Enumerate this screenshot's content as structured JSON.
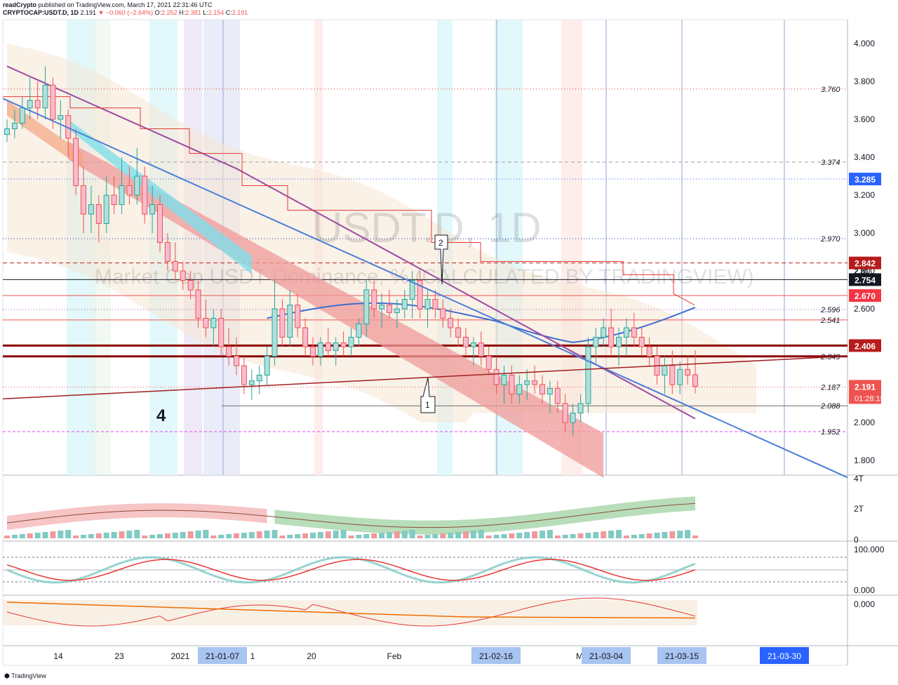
{
  "header": {
    "publisher_line": "readCrypto published on TradingView.com, March 17, 2021 22:31:46 UTC",
    "publisher": "readCrypto",
    "published_text": "published on TradingView.com, March 17, 2021 22:31:46 UTC",
    "symbol": "CRYPTOCAP:USDT.D, 1D",
    "last": "2.191",
    "change": "−0.060 (−2.64%)",
    "o_label": "O:",
    "o": "2.252",
    "h_label": "H:",
    "h": "2.381",
    "l_label": "L:",
    "l": "2.154",
    "c_label": "C:",
    "c": "2.191"
  },
  "watermark": {
    "symbol": "USDT.D, 1D",
    "description": "Market Cap USDT Dominance, % (CALCULATED BY TRADINGVIEW)"
  },
  "chart_data": {
    "type": "candlestick",
    "symbol": "USDT.D",
    "interval": "1D",
    "y_axis_ticks": [
      "4.000",
      "3.800",
      "3.600",
      "3.400",
      "3.200",
      "3.000",
      "2.800",
      "2.600",
      "2.400",
      "2.200",
      "2.000",
      "1.800"
    ],
    "ylim": [
      1.72,
      4.15
    ],
    "x_axis_labels": [
      "14",
      "23",
      "2021",
      "21-01-07",
      "1",
      "20",
      "Feb",
      "21-02-16",
      "M",
      "21-03-04",
      "21-03-15",
      "21-03-30"
    ],
    "highlighted_dates": [
      "21-01-07",
      "21-02-16",
      "21-03-04",
      "21-03-15",
      "21-03-30"
    ],
    "level_labels": [
      "3.760",
      "3.374",
      "2.970",
      "2.596",
      "2.541",
      "2.349",
      "2.187",
      "2.088",
      "1.952"
    ],
    "price_tags": [
      {
        "value": "3.285",
        "color": "#2962ff"
      },
      {
        "value": "2.842",
        "color": "#b71c1c"
      },
      {
        "value": "2.754",
        "color": "#131722"
      },
      {
        "value": "2.670",
        "color": "#f23645"
      },
      {
        "value": "2.406",
        "color": "#b71c1c"
      },
      {
        "value": "2.191",
        "sub": "01:28:15",
        "color": "#ef5350"
      }
    ],
    "hidden_tag_text": "2.80",
    "annotations": [
      "1",
      "2",
      "4"
    ],
    "candles": [
      [
        3.52,
        3.6,
        3.48,
        3.55
      ],
      [
        3.55,
        3.65,
        3.5,
        3.58
      ],
      [
        3.58,
        3.72,
        3.55,
        3.66
      ],
      [
        3.66,
        3.82,
        3.6,
        3.7
      ],
      [
        3.7,
        3.8,
        3.6,
        3.66
      ],
      [
        3.66,
        3.88,
        3.6,
        3.78
      ],
      [
        3.78,
        3.82,
        3.55,
        3.6
      ],
      [
        3.6,
        3.7,
        3.5,
        3.62
      ],
      [
        3.62,
        3.65,
        3.4,
        3.5
      ],
      [
        3.5,
        3.55,
        3.2,
        3.25
      ],
      [
        3.25,
        3.35,
        3.0,
        3.1
      ],
      [
        3.1,
        3.25,
        3.0,
        3.15
      ],
      [
        3.15,
        3.2,
        2.95,
        3.05
      ],
      [
        3.05,
        3.3,
        3.0,
        3.2
      ],
      [
        3.2,
        3.3,
        3.1,
        3.15
      ],
      [
        3.15,
        3.4,
        3.1,
        3.25
      ],
      [
        3.25,
        3.35,
        3.15,
        3.2
      ],
      [
        3.2,
        3.45,
        3.15,
        3.3
      ],
      [
        3.3,
        3.35,
        3.05,
        3.1
      ],
      [
        3.1,
        3.25,
        3.0,
        3.15
      ],
      [
        3.15,
        3.2,
        2.9,
        2.95
      ],
      [
        2.95,
        3.0,
        2.8,
        2.85
      ],
      [
        2.85,
        2.95,
        2.75,
        2.8
      ],
      [
        2.8,
        2.85,
        2.7,
        2.75
      ],
      [
        2.75,
        2.8,
        2.65,
        2.7
      ],
      [
        2.7,
        2.75,
        2.5,
        2.55
      ],
      [
        2.55,
        2.65,
        2.45,
        2.5
      ],
      [
        2.5,
        2.6,
        2.4,
        2.55
      ],
      [
        2.55,
        2.6,
        2.35,
        2.4
      ],
      [
        2.4,
        2.5,
        2.3,
        2.35
      ],
      [
        2.35,
        2.45,
        2.25,
        2.3
      ],
      [
        2.3,
        2.35,
        2.15,
        2.2
      ],
      [
        2.2,
        2.28,
        2.12,
        2.22
      ],
      [
        2.22,
        2.3,
        2.15,
        2.25
      ],
      [
        2.25,
        2.4,
        2.2,
        2.35
      ],
      [
        2.35,
        2.75,
        2.3,
        2.6
      ],
      [
        2.6,
        2.65,
        2.4,
        2.45
      ],
      [
        2.45,
        2.7,
        2.4,
        2.62
      ],
      [
        2.62,
        2.68,
        2.45,
        2.5
      ],
      [
        2.5,
        2.55,
        2.35,
        2.4
      ],
      [
        2.4,
        2.45,
        2.3,
        2.35
      ],
      [
        2.35,
        2.45,
        2.3,
        2.42
      ],
      [
        2.42,
        2.5,
        2.35,
        2.38
      ],
      [
        2.38,
        2.45,
        2.3,
        2.42
      ],
      [
        2.42,
        2.48,
        2.35,
        2.4
      ],
      [
        2.4,
        2.5,
        2.35,
        2.45
      ],
      [
        2.45,
        2.55,
        2.4,
        2.52
      ],
      [
        2.52,
        2.75,
        2.45,
        2.7
      ],
      [
        2.7,
        2.75,
        2.55,
        2.6
      ],
      [
        2.6,
        2.68,
        2.5,
        2.62
      ],
      [
        2.62,
        2.7,
        2.55,
        2.58
      ],
      [
        2.58,
        2.65,
        2.5,
        2.6
      ],
      [
        2.6,
        2.7,
        2.55,
        2.65
      ],
      [
        2.65,
        2.8,
        2.55,
        2.75
      ],
      [
        2.75,
        2.8,
        2.55,
        2.6
      ],
      [
        2.6,
        2.7,
        2.5,
        2.65
      ],
      [
        2.65,
        2.7,
        2.55,
        2.6
      ],
      [
        2.6,
        2.65,
        2.5,
        2.55
      ],
      [
        2.55,
        2.6,
        2.45,
        2.5
      ],
      [
        2.5,
        2.55,
        2.4,
        2.45
      ],
      [
        2.45,
        2.5,
        2.35,
        2.4
      ],
      [
        2.4,
        2.45,
        2.3,
        2.42
      ],
      [
        2.42,
        2.48,
        2.3,
        2.35
      ],
      [
        2.35,
        2.4,
        2.25,
        2.28
      ],
      [
        2.28,
        2.35,
        2.15,
        2.2
      ],
      [
        2.2,
        2.3,
        2.1,
        2.25
      ],
      [
        2.25,
        2.3,
        2.1,
        2.15
      ],
      [
        2.15,
        2.25,
        2.1,
        2.2
      ],
      [
        2.2,
        2.28,
        2.12,
        2.22
      ],
      [
        2.22,
        2.3,
        2.15,
        2.2
      ],
      [
        2.2,
        2.25,
        2.1,
        2.15
      ],
      [
        2.15,
        2.22,
        2.05,
        2.18
      ],
      [
        2.18,
        2.22,
        2.05,
        2.1
      ],
      [
        2.1,
        2.15,
        1.95,
        2.0
      ],
      [
        2.0,
        2.1,
        1.93,
        2.05
      ],
      [
        2.05,
        2.15,
        2.0,
        2.1
      ],
      [
        2.1,
        2.45,
        2.05,
        2.4
      ],
      [
        2.4,
        2.5,
        2.3,
        2.45
      ],
      [
        2.45,
        2.55,
        2.4,
        2.5
      ],
      [
        2.5,
        2.6,
        2.35,
        2.4
      ],
      [
        2.4,
        2.5,
        2.3,
        2.45
      ],
      [
        2.45,
        2.55,
        2.35,
        2.5
      ],
      [
        2.5,
        2.58,
        2.4,
        2.45
      ],
      [
        2.45,
        2.5,
        2.35,
        2.4
      ],
      [
        2.4,
        2.45,
        2.3,
        2.35
      ],
      [
        2.35,
        2.4,
        2.2,
        2.25
      ],
      [
        2.25,
        2.35,
        2.15,
        2.3
      ],
      [
        2.3,
        2.38,
        2.15,
        2.2
      ],
      [
        2.2,
        2.32,
        2.15,
        2.28
      ],
      [
        2.28,
        2.35,
        2.2,
        2.25
      ],
      [
        2.252,
        2.381,
        2.154,
        2.191
      ]
    ]
  },
  "indicators": {
    "pane1_ticks": [
      "4T",
      "2T",
      "0"
    ],
    "pane2_ticks": [
      "100.000",
      "0.000"
    ],
    "pane3_ticks": [
      "0.000"
    ]
  },
  "footer": {
    "brand": "TradingView"
  }
}
